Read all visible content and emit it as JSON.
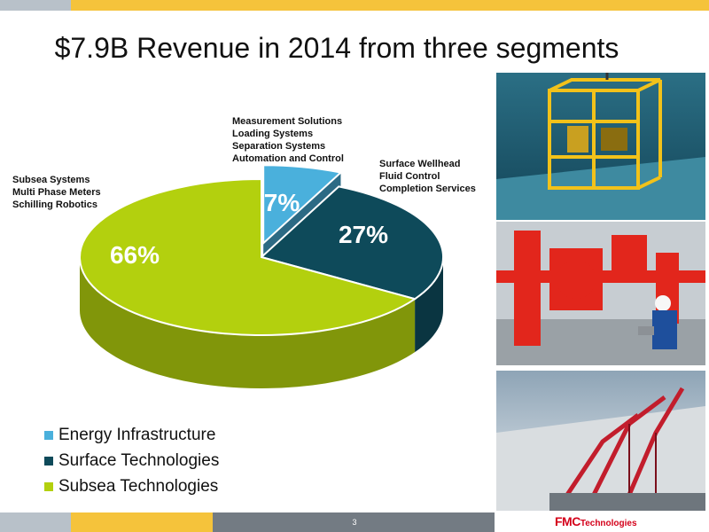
{
  "slide": {
    "title": "$7.9B Revenue in 2014 from three segments",
    "page_number": "3",
    "logo": {
      "mark": "FMC",
      "sub": "Technologies"
    }
  },
  "colors": {
    "gold": "#f5c33b",
    "gray": "#b8c1c9",
    "dark_gray": "#737b83"
  },
  "category_labels": [
    {
      "lines": [
        "Measurement Solutions",
        "Loading Systems",
        "Separation Systems",
        "Automation and Control"
      ]
    },
    {
      "lines": [
        "Surface Wellhead",
        "Fluid Control",
        "Completion Services"
      ]
    },
    {
      "lines": [
        "Subsea Systems",
        "Multi Phase Meters",
        "Schilling Robotics"
      ]
    }
  ],
  "photos": [
    {
      "subject": "subsea-equipment-photo"
    },
    {
      "subject": "surface-wellhead-photo"
    },
    {
      "subject": "loading-arms-photo"
    }
  ],
  "chart_data": {
    "type": "pie",
    "title": "$7.9B Revenue in 2014 from three segments",
    "series": [
      {
        "name": "Energy Infrastructure",
        "value": 7,
        "label": "7%",
        "color": "#4ab0dc"
      },
      {
        "name": "Surface Technologies",
        "value": 27,
        "label": "27%",
        "color": "#0e4a5a"
      },
      {
        "name": "Subsea Technologies",
        "value": 66,
        "label": "66%",
        "color": "#b3d00e"
      }
    ],
    "legend_position": "bottom-left",
    "three_d": true
  }
}
